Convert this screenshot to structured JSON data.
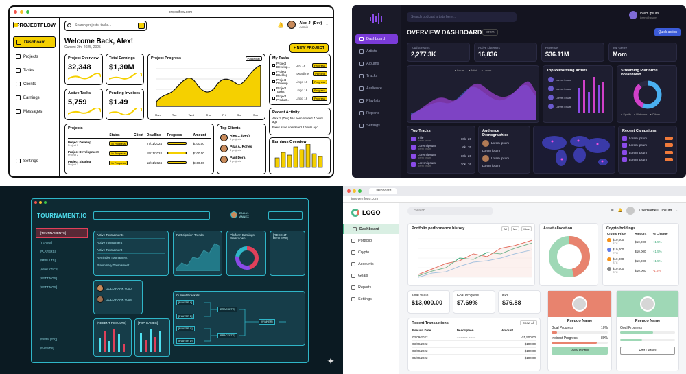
{
  "projectflow": {
    "url": "projectflow.com",
    "brand": "PROJECTFLOW",
    "nav": [
      "Dashboard",
      "Projects",
      "Tasks",
      "Clients",
      "Earnings",
      "Messages"
    ],
    "settings": "Settings",
    "search_placeholder": "Search projects, tasks...",
    "user_name": "Alex J. (Dev)",
    "user_role": "Admin",
    "welcome": "Welcome Back, Alex!",
    "date": "Current 2th, 2025, 2025",
    "new_project": "+ NEW PROJECT",
    "kpis": [
      {
        "title": "Project Overview",
        "value": "32,348"
      },
      {
        "title": "Total Earnings",
        "value": "$1,30M"
      },
      {
        "title": "Active Tasks",
        "value": "5,759"
      },
      {
        "title": "Pending Invoices",
        "value": "$1.49"
      }
    ],
    "progress_title": "Project Progress",
    "progress_filter": "Passed all",
    "progress_days": [
      "Mon",
      "Tue",
      "Wed",
      "Thu",
      "Fri",
      "Sat",
      "Sun"
    ],
    "my_tasks_title": "My Tasks",
    "tasks": [
      {
        "name": "Project Develop...",
        "date": "Dec 16",
        "status": "Progress"
      },
      {
        "name": "Project Backlog",
        "date": "Deadline",
        "status": "Pending"
      },
      {
        "name": "Project Develop...",
        "date": "Lingo 16",
        "status": "Progress"
      },
      {
        "name": "Project Tasks",
        "date": "Lingo 16",
        "status": "Progress"
      },
      {
        "name": "Project Product...",
        "date": "Lingo 16",
        "status": "Progress"
      }
    ],
    "activity_title": "Recent Activity",
    "activity": [
      "Alex J. (Dev) has been noticed 7 hours ago",
      "Fixed issue completed 2 hours ago"
    ],
    "projects_title": "Projects",
    "projects_headers": [
      "Status",
      "Client",
      "Deadline",
      "Progress",
      "Amount"
    ],
    "projects": [
      {
        "name": "Project Develop",
        "sub": "Project 1",
        "status": "In Progress",
        "deadline": "27/11/2024",
        "amount": "$100.00"
      },
      {
        "name": "Project Development",
        "sub": "Project 2",
        "status": "In Progress",
        "deadline": "19/11/2024",
        "amount": "$100.00"
      },
      {
        "name": "Project Sharing",
        "sub": "Project 3",
        "status": "In Progress",
        "deadline": "12/11/2024",
        "amount": "$100.00"
      }
    ],
    "clients_title": "Top Clients",
    "clients": [
      {
        "name": "Alex J. (Dev)",
        "sub": "6 projects"
      },
      {
        "name": "Pilar A. Rohes",
        "sub": "4 projects"
      },
      {
        "name": "Paul Dora",
        "sub": "3 projects"
      }
    ],
    "earnings_title": "Earnings Overview"
  },
  "music": {
    "search_placeholder": "Search podcast artists here...",
    "user_name": "lorem ipsum",
    "user_sub": "lorem@ipsum",
    "nav": [
      "Dashboard",
      "Artists",
      "Albums",
      "Tracks",
      "Audience",
      "Playlists",
      "Reports",
      "Settings"
    ],
    "title": "OVERVIEW DASHBOARD",
    "filter": "lorem",
    "quick_action": "Quick action",
    "stats": [
      {
        "title": "Total Streams",
        "value": "2,277.3K",
        "delta": "+22%"
      },
      {
        "title": "Active Listeners",
        "value": "16,836",
        "delta": "+18%"
      },
      {
        "title": "Revenue",
        "value": "$36.11M",
        "delta": "+6%"
      },
      {
        "title": "Top Genre",
        "value": "Mom",
        "delta": ""
      }
    ],
    "legend": [
      "Ipsum",
      "Artist",
      "Lorem"
    ],
    "top_artists_title": "Top Performing Artists",
    "artist_label": "Lorem ipsum",
    "platforms_title": "Streaming Platforms Breakdown",
    "platform_legend": [
      "Spotify",
      "Platforms",
      "Others"
    ],
    "top_tracks_title": "Top Tracks",
    "tracks": [
      {
        "name": "Title",
        "sub": "lorem ipsum",
        "n1": "10k",
        "n2": "26"
      },
      {
        "name": "Lorem ipsum",
        "sub": "lorem ipsum",
        "n1": "6k",
        "n2": "35"
      },
      {
        "name": "Lorem ipsum",
        "sub": "lorem ipsum",
        "n1": "10k",
        "n2": "26"
      },
      {
        "name": "Lorem ipsum",
        "sub": "lorem ipsum",
        "n1": "10k",
        "n2": "26"
      }
    ],
    "demographics_title": "Audience Demographics",
    "demo_rows": [
      "Lorem ipsum",
      "Lorem ipsum",
      "Lorem ipsum",
      "Lorem ipsum"
    ],
    "campaigns_title": "Recent Campaigns",
    "campaign_label": "Lorem ipsum"
  },
  "tournament": {
    "brand": "TOURNAMENT.IO",
    "user_name": "DNA #1",
    "user_sub": "ANNEX",
    "nav": [
      "[TOURNAMENTS]",
      "[TEAMS]",
      "[PLAYERS]",
      "[RESULTS]",
      "[ANALYTICS]",
      "[SETTINGS]",
      "[SETTINGS]"
    ],
    "nav_bottom": [
      "[ESPN (EV)]",
      "[EVENTS]"
    ],
    "active_title": "Active Tournaments",
    "active_rows": [
      "Active Tournament",
      "Active Tournament",
      "Reminder Tournament",
      "Preliminary Tournament"
    ],
    "participation_title": "Participation Trends",
    "platform_title": "Platform Earnings Breakdown",
    "recent_results_title": "[RECENT RESULTS]",
    "current_brackets_title": "Current Brackets",
    "brackets_label": "[BRACKETS]",
    "winner_label": "[WINNER]",
    "players": [
      "[PLAYER A]",
      "[PLAYER B]",
      "[PLAYER C]",
      "[PLAYER D]",
      "[PLAYER E]",
      "[PLAYER F]"
    ],
    "teams": [
      "GOLD RANK #000",
      "GOLD RANK #008"
    ],
    "recent_results2": "[RECENT RESULTS]",
    "top_games": "[TOP GAMES]"
  },
  "crypto": {
    "tab": "Dashboard",
    "url": "innovemlogo.com",
    "logo": "LOGO",
    "search_placeholder": "Search...",
    "user_name": "Username L. Ipsum",
    "nav": [
      "Dashboard",
      "Portfolio",
      "Crypto",
      "Accounts",
      "Goals",
      "Reports",
      "Settings"
    ],
    "history_title": "Portfolio performance history",
    "history_filters": [
      "All",
      "Mel",
      "Mole"
    ],
    "allocation_title": "Asset allocation",
    "holdings_title": "Crypto holdings",
    "holdings_headers": [
      "Crypto Price",
      "Amount",
      "% Change"
    ],
    "holdings": [
      {
        "price": "$10,000",
        "sub": "BTC",
        "amount": "$10,000",
        "change": "+1.5%",
        "up": true
      },
      {
        "price": "$10,000",
        "sub": "ETH",
        "amount": "$10,000",
        "change": "+1.5%",
        "up": true
      },
      {
        "price": "$10,000",
        "sub": "BTC",
        "amount": "$10,000",
        "change": "+1.5%",
        "up": true
      },
      {
        "price": "$10,000",
        "sub": "BTC",
        "amount": "$10,000",
        "change": "-1.5%",
        "up": false
      }
    ],
    "total_value_label": "Total Value",
    "total_value": "$13,000.00",
    "goal_label": "Goal Progress",
    "goal_value": "$7.69%",
    "kpi_label": "KPI",
    "kpi_value": "$76.88",
    "transactions_title": "Recent Transactions",
    "show_all": "Show All",
    "tx_headers": [
      "Pseudo Date",
      "Description",
      "Amount"
    ],
    "transactions": [
      {
        "date": "03/09/2022",
        "desc": "~~~~~~ ~~~~",
        "amount": "-$1,500.00"
      },
      {
        "date": "03/09/2022",
        "desc": "~~~~~~ ~~~~",
        "amount": "-$100.00"
      },
      {
        "date": "03/09/2022",
        "desc": "~~~~~~ ~~~~",
        "amount": "-$100.00"
      },
      {
        "date": "05/09/2022",
        "desc": "~~~~~~ ~~~~",
        "amount": "-$100.00"
      }
    ],
    "profiles": [
      {
        "name": "Pseudo Name",
        "goal": "Goal Progress",
        "goal_pct": "10%",
        "indirect": "Indirect Progress",
        "indirect_pct": "80%",
        "button": "View Profile",
        "color": "#e8836e"
      },
      {
        "name": "Pseudo Name",
        "goal": "Goal Progress",
        "goal_pct": "",
        "indirect": "",
        "indirect_pct": "",
        "button": "Edit Details",
        "color": "#9fd8b6"
      }
    ]
  }
}
